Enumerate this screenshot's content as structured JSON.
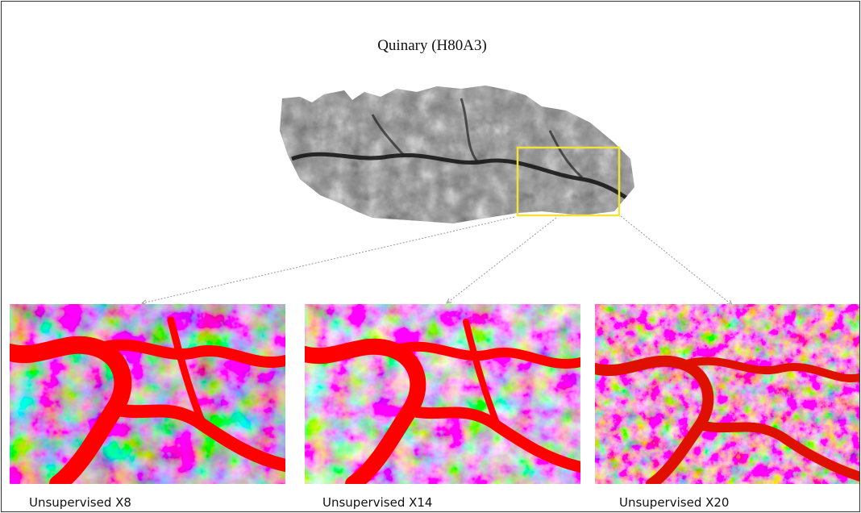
{
  "figure": {
    "title": "Quinary (H80A3)",
    "panels": [
      {
        "caption": "Unsupervised X8",
        "classes": 8
      },
      {
        "caption": "Unsupervised X14",
        "classes": 14
      },
      {
        "caption": "Unsupervised X20",
        "classes": 20
      }
    ],
    "colors": {
      "highlight_box": "#f2e23a",
      "connector": "#999999",
      "palette": [
        "#ff0000",
        "#ff00c8",
        "#7b2bff",
        "#2f4dff",
        "#2ec7ff",
        "#25ff6a",
        "#b7ff24",
        "#ffe51c",
        "#ff8a12",
        "#ff3b00"
      ]
    }
  }
}
